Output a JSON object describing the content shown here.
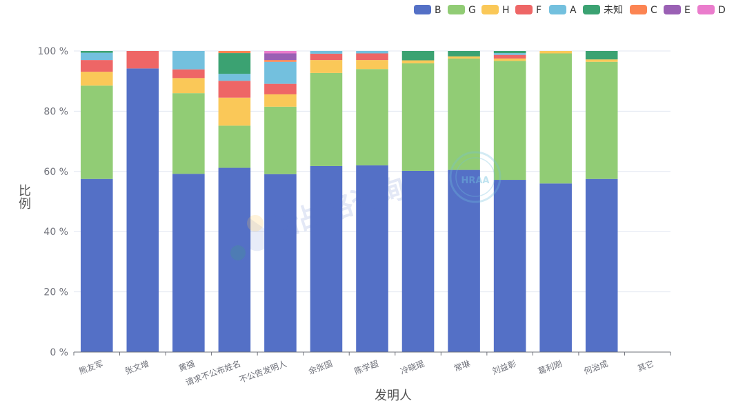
{
  "chart_data": {
    "type": "bar",
    "stacked": true,
    "percent": true,
    "xlabel": "发明人",
    "ylabel": "比例",
    "ylim": [
      0,
      100
    ],
    "yticks": [
      "0 %",
      "20 %",
      "40 %",
      "60 %",
      "80 %",
      "100 %"
    ],
    "legend_position": "top-right",
    "categories": [
      "熊友军",
      "张文增",
      "黄强",
      "请求不公布姓名",
      "不公告发明人",
      "余张国",
      "陈学超",
      "冷晓琨",
      "常琳",
      "刘益彰",
      "葛利刚",
      "何治成",
      "其它"
    ],
    "series": [
      {
        "name": "B",
        "color": "#5470c6",
        "values": [
          57.5,
          94.2,
          59.2,
          61.2,
          59.1,
          61.8,
          62.0,
          60.2,
          60.5,
          57.2,
          56.0,
          57.5,
          0
        ]
      },
      {
        "name": "G",
        "color": "#91cc75",
        "values": [
          31.0,
          0,
          26.8,
          14.0,
          22.4,
          30.9,
          32.0,
          35.7,
          37.0,
          39.5,
          43.2,
          38.9,
          0
        ]
      },
      {
        "name": "H",
        "color": "#fac858",
        "values": [
          4.6,
          0,
          5.0,
          9.3,
          4.1,
          4.3,
          3.0,
          1.0,
          0.7,
          0.8,
          0.8,
          0.8,
          0
        ]
      },
      {
        "name": "F",
        "color": "#ee6666",
        "values": [
          3.9,
          5.8,
          2.9,
          5.6,
          3.5,
          2.1,
          2.2,
          0,
          0,
          1.2,
          0,
          0,
          0
        ]
      },
      {
        "name": "A",
        "color": "#73c0de",
        "values": [
          2.4,
          0,
          6.1,
          2.3,
          7.3,
          0.9,
          0.8,
          0,
          0,
          0.6,
          0,
          0,
          0
        ]
      },
      {
        "name": "未知",
        "color": "#3ba272",
        "values": [
          0.6,
          0,
          0,
          6.9,
          0,
          0,
          0,
          3.1,
          1.8,
          0.7,
          0,
          2.8,
          0
        ]
      },
      {
        "name": "C",
        "color": "#fc8452",
        "values": [
          0,
          0,
          0,
          0.7,
          0.6,
          0,
          0,
          0,
          0,
          0,
          0,
          0,
          0
        ]
      },
      {
        "name": "E",
        "color": "#9a60b4",
        "values": [
          0,
          0,
          0,
          0,
          2.2,
          0,
          0,
          0,
          0,
          0,
          0,
          0,
          0
        ]
      },
      {
        "name": "D",
        "color": "#ea7ccc",
        "values": [
          0,
          0,
          0,
          0,
          0.8,
          0,
          0,
          0,
          0,
          0,
          0,
          0,
          0
        ]
      }
    ]
  },
  "watermark": {
    "text": "新战略咨询",
    "badge_text": "HRAA"
  }
}
